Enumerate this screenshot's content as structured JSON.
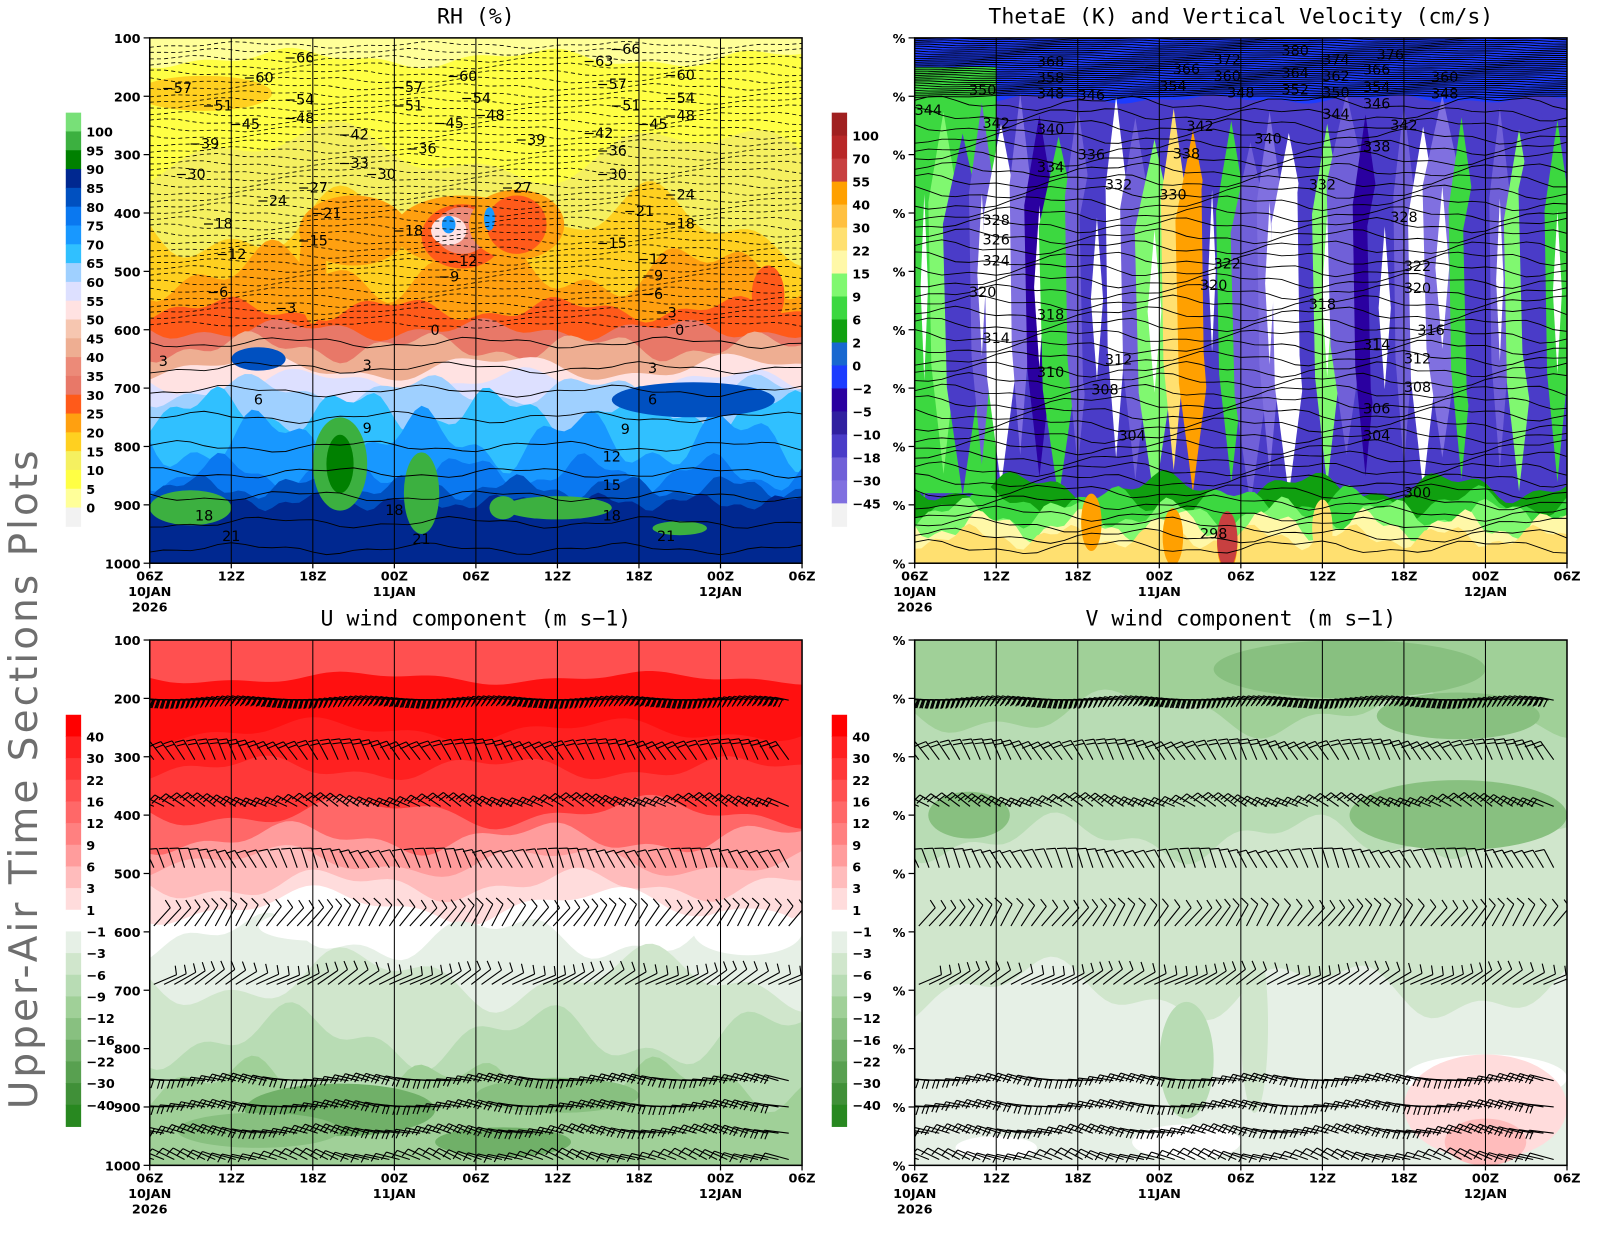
{
  "side_title": "Upper-Air Time Sections Plots",
  "time_axis": [
    {
      "time": "06Z",
      "date": "10JAN",
      "year": "2026"
    },
    {
      "time": "12Z"
    },
    {
      "time": "18Z"
    },
    {
      "time": "00Z",
      "date": "11JAN"
    },
    {
      "time": "06Z"
    },
    {
      "time": "12Z"
    },
    {
      "time": "18Z"
    },
    {
      "time": "00Z",
      "date": "12JAN"
    },
    {
      "time": "06Z"
    }
  ],
  "chart_data": [
    {
      "type": "contour",
      "title": "RH (%)",
      "ylim": [
        1000,
        100
      ],
      "grid": true,
      "y_ticks": [
        "100",
        "200",
        "300",
        "400",
        "500",
        "600",
        "700",
        "800",
        "900",
        "1000"
      ],
      "colorbar": {
        "labels": [
          "100",
          "95",
          "90",
          "85",
          "80",
          "75",
          "70",
          "65",
          "60",
          "55",
          "50",
          "45",
          "40",
          "35",
          "30",
          "25",
          "20",
          "15",
          "10",
          "5",
          "0"
        ],
        "colors": [
          "#78e078",
          "#3cb040",
          "#008000",
          "#002890",
          "#0050c0",
          "#0a78f0",
          "#1898ff",
          "#30c0ff",
          "#9fd0ff",
          "#dde0ff",
          "#ffe2e2",
          "#f6c6b0",
          "#eeae92",
          "#ec8a78",
          "#e87868",
          "#ff5a1a",
          "#ffa010",
          "#ffd020",
          "#f5f060",
          "#ffff44",
          "#ffff99",
          "#f2f2f2"
        ]
      },
      "contour_labels": [
        [
          "10/17Z",
          133,
          "−66"
        ],
        [
          "10/08Z",
          186,
          "−57"
        ],
        [
          "10/14Z",
          168,
          "−60"
        ],
        [
          "10/11Z",
          216,
          "−51"
        ],
        [
          "10/17Z",
          205,
          "−54"
        ],
        [
          "10/13Z",
          247,
          "−45"
        ],
        [
          "10/17Z",
          237,
          "−48"
        ],
        [
          "10/10Z",
          281,
          "−39"
        ],
        [
          "10/21Z",
          265,
          "−42"
        ],
        [
          "10/09Z",
          333,
          "−30"
        ],
        [
          "10/21Z",
          314,
          "−33"
        ],
        [
          "10/15Z",
          378,
          "−24"
        ],
        [
          "10/18Z",
          356,
          "−27"
        ],
        [
          "10/11Z",
          418,
          "−18"
        ],
        [
          "10/19Z",
          400,
          "−21"
        ],
        [
          "10/18Z",
          447,
          "−15"
        ],
        [
          "10/12Z",
          470,
          "−12"
        ],
        [
          "10/11Z",
          535,
          "−6"
        ],
        [
          "10/16Z",
          563,
          "−3"
        ],
        [
          "10/07Z",
          653,
          "3"
        ],
        [
          "10/14Z",
          719,
          "6"
        ],
        [
          "10/22Z",
          768,
          "9"
        ],
        [
          "10/10Z",
          918,
          "18"
        ],
        [
          "10/12Z",
          953,
          "21"
        ],
        [
          "11/01Z",
          184,
          "−57"
        ],
        [
          "11/01Z",
          216,
          "−51"
        ],
        [
          "11/05Z",
          165,
          "−60"
        ],
        [
          "11/06Z",
          203,
          "−54"
        ],
        [
          "11/04Z",
          246,
          "−45"
        ],
        [
          "11/07Z",
          232,
          "−48"
        ],
        [
          "11/02Z",
          289,
          "−36"
        ],
        [
          "10/23Z",
          333,
          "−30"
        ],
        [
          "11/01Z",
          430,
          "−18"
        ],
        [
          "11/09Z",
          356,
          "−27"
        ],
        [
          "11/05Z",
          482,
          "−12"
        ],
        [
          "11/04Z",
          509,
          "−9"
        ],
        [
          "11/10Z",
          274,
          "−39"
        ],
        [
          "11/03Z",
          600,
          "0"
        ],
        [
          "10/22Z",
          660,
          "3"
        ],
        [
          "11/00Z",
          909,
          "18"
        ],
        [
          "11/02Z",
          958,
          "21"
        ],
        [
          "11/15Z",
          139,
          "−63"
        ],
        [
          "11/17Z",
          119,
          "−66"
        ],
        [
          "11/16Z",
          179,
          "−57"
        ],
        [
          "11/17Z",
          216,
          "−51"
        ],
        [
          "11/15Z",
          263,
          "−42"
        ],
        [
          "11/16Z",
          293,
          "−36"
        ],
        [
          "11/16Z",
          333,
          "−30"
        ],
        [
          "11/19Z",
          247,
          "−45"
        ],
        [
          "11/21Z",
          163,
          "−60"
        ],
        [
          "11/21Z",
          203,
          "−54"
        ],
        [
          "11/21Z",
          233,
          "−48"
        ],
        [
          "11/21Z",
          368,
          "−24"
        ],
        [
          "11/21Z",
          418,
          "−18"
        ],
        [
          "11/18Z",
          396,
          "−21"
        ],
        [
          "11/16Z",
          451,
          "−15"
        ],
        [
          "11/19Z",
          479,
          "−12"
        ],
        [
          "11/19Z",
          507,
          "−9"
        ],
        [
          "11/19Z",
          539,
          "−6"
        ],
        [
          "11/20Z",
          570,
          "−3"
        ],
        [
          "11/21Z",
          600,
          "0"
        ],
        [
          "11/19Z",
          665,
          "3"
        ],
        [
          "11/19Z",
          719,
          "6"
        ],
        [
          "11/17Z",
          770,
          "9"
        ],
        [
          "11/16Z",
          817,
          "12"
        ],
        [
          "11/16Z",
          866,
          "15"
        ],
        [
          "11/16Z",
          918,
          "18"
        ],
        [
          "11/20Z",
          953,
          "21"
        ]
      ]
    },
    {
      "type": "contour",
      "title": "ThetaE (K) and Vertical Velocity (cm/s)",
      "ylim": [
        1000,
        100
      ],
      "grid": true,
      "y_ticks": [
        "%",
        "%",
        "%",
        "%",
        "%",
        "%",
        "%",
        "%",
        "%",
        "%"
      ],
      "colorbar": {
        "labels": [
          "100",
          "70",
          "55",
          "40",
          "30",
          "22",
          "15",
          "9",
          "6",
          "2",
          "0",
          "−2",
          "−5",
          "−10",
          "−18",
          "−30",
          "−45"
        ],
        "colors": [
          "#a02020",
          "#b82828",
          "#c84040",
          "#ffa000",
          "#ffc040",
          "#ffe070",
          "#fff8a8",
          "#80f870",
          "#3cd840",
          "#10a010",
          "#1868d0",
          "#1c3cff",
          "#2a00a0",
          "#3020a0",
          "#4a3cc8",
          "#7060d8",
          "#8070e0",
          "#f2f2f2"
        ]
      },
      "contour_labels": [
        [
          "10/16Z",
          140,
          "368"
        ],
        [
          "10/16Z",
          168,
          "358"
        ],
        [
          "10/16Z",
          195,
          "348"
        ],
        [
          "10/11Z",
          189,
          "350"
        ],
        [
          "10/07Z",
          223,
          "344"
        ],
        [
          "10/19Z",
          198,
          "346"
        ],
        [
          "10/12Z",
          246,
          "342"
        ],
        [
          "10/16Z",
          256,
          "340"
        ],
        [
          "10/19Z",
          300,
          "336"
        ],
        [
          "10/16Z",
          321,
          "334"
        ],
        [
          "10/21Z",
          351,
          "332"
        ],
        [
          "11/01Z",
          368,
          "330"
        ],
        [
          "11/02Z",
          298,
          "338"
        ],
        [
          "11/03Z",
          251,
          "342"
        ],
        [
          "11/02Z",
          153,
          "366"
        ],
        [
          "11/01Z",
          182,
          "354"
        ],
        [
          "11/05Z",
          137,
          "372"
        ],
        [
          "11/05Z",
          165,
          "360"
        ],
        [
          "11/06Z",
          193,
          "348"
        ],
        [
          "11/08Z",
          272,
          "340"
        ],
        [
          "11/10Z",
          121,
          "380"
        ],
        [
          "11/10Z",
          160,
          "364"
        ],
        [
          "11/10Z",
          188,
          "352"
        ],
        [
          "11/13Z",
          137,
          "374"
        ],
        [
          "11/13Z",
          165,
          "362"
        ],
        [
          "11/13Z",
          193,
          "350"
        ],
        [
          "11/13Z",
          230,
          "344"
        ],
        [
          "11/17Z",
          128,
          "376"
        ],
        [
          "11/16Z",
          154,
          "366"
        ],
        [
          "11/16Z",
          184,
          "354"
        ],
        [
          "11/16Z",
          212,
          "346"
        ],
        [
          "11/16Z",
          286,
          "338"
        ],
        [
          "11/18Z",
          249,
          "342"
        ],
        [
          "11/12Z",
          351,
          "332"
        ],
        [
          "11/21Z",
          167,
          "360"
        ],
        [
          "11/21Z",
          195,
          "348"
        ],
        [
          "10/12Z",
          412,
          "328"
        ],
        [
          "10/12Z",
          445,
          "326"
        ],
        [
          "10/12Z",
          481,
          "324"
        ],
        [
          "10/11Z",
          535,
          "320"
        ],
        [
          "10/16Z",
          574,
          "318"
        ],
        [
          "10/12Z",
          614,
          "314"
        ],
        [
          "10/16Z",
          672,
          "310"
        ],
        [
          "10/21Z",
          651,
          "312"
        ],
        [
          "10/20Z",
          702,
          "308"
        ],
        [
          "10/22Z",
          781,
          "304"
        ],
        [
          "11/05Z",
          486,
          "322"
        ],
        [
          "11/04Z",
          523,
          "320"
        ],
        [
          "11/12Z",
          556,
          "318"
        ],
        [
          "11/18Z",
          407,
          "328"
        ],
        [
          "11/19Z",
          491,
          "322"
        ],
        [
          "11/19Z",
          528,
          "320"
        ],
        [
          "11/20Z",
          600,
          "316"
        ],
        [
          "11/16Z",
          625,
          "314"
        ],
        [
          "11/19Z",
          649,
          "312"
        ],
        [
          "11/19Z",
          698,
          "308"
        ],
        [
          "11/16Z",
          735,
          "306"
        ],
        [
          "11/16Z",
          781,
          "304"
        ],
        [
          "11/19Z",
          879,
          "300"
        ],
        [
          "11/04Z",
          949,
          "298"
        ]
      ]
    },
    {
      "type": "contour",
      "title": "U wind component (m s−1)",
      "ylim": [
        1000,
        100
      ],
      "grid": true,
      "y_ticks": [
        "100",
        "200",
        "300",
        "400",
        "500",
        "600",
        "700",
        "800",
        "900",
        "1000"
      ],
      "colorbar": {
        "labels": [
          "40",
          "30",
          "22",
          "16",
          "12",
          "9",
          "6",
          "3",
          "1",
          "−1",
          "−3",
          "−6",
          "−9",
          "−12",
          "−16",
          "−22",
          "−30",
          "−40"
        ],
        "colors": [
          "#ff0000",
          "#ff2020",
          "#ff3838",
          "#ff5050",
          "#ff6868",
          "#ff8080",
          "#ff9c9c",
          "#ffbcbc",
          "#ffdcdc",
          "#ffffff",
          "#e6f0e6",
          "#d0e6cc",
          "#b8dcb4",
          "#a0d098",
          "#88c080",
          "#70b068",
          "#58a050",
          "#409038",
          "#288820"
        ]
      },
      "contour_labels": []
    },
    {
      "type": "contour",
      "title": "V wind component (m s−1)",
      "ylim": [
        1000,
        100
      ],
      "grid": true,
      "y_ticks": [
        "%",
        "%",
        "%",
        "%",
        "%",
        "%",
        "%",
        "%",
        "%",
        "%"
      ],
      "colorbar": {
        "labels": [
          "40",
          "30",
          "22",
          "16",
          "12",
          "9",
          "6",
          "3",
          "1",
          "−1",
          "−3",
          "−6",
          "−9",
          "−12",
          "−16",
          "−22",
          "−30",
          "−40"
        ],
        "colors": [
          "#ff0000",
          "#ff2020",
          "#ff3838",
          "#ff5050",
          "#ff6868",
          "#ff8080",
          "#ff9c9c",
          "#ffbcbc",
          "#ffdcdc",
          "#ffffff",
          "#e6f0e6",
          "#d0e6cc",
          "#b8dcb4",
          "#a0d098",
          "#88c080",
          "#70b068",
          "#58a050",
          "#409038",
          "#288820"
        ]
      },
      "contour_labels": []
    }
  ]
}
